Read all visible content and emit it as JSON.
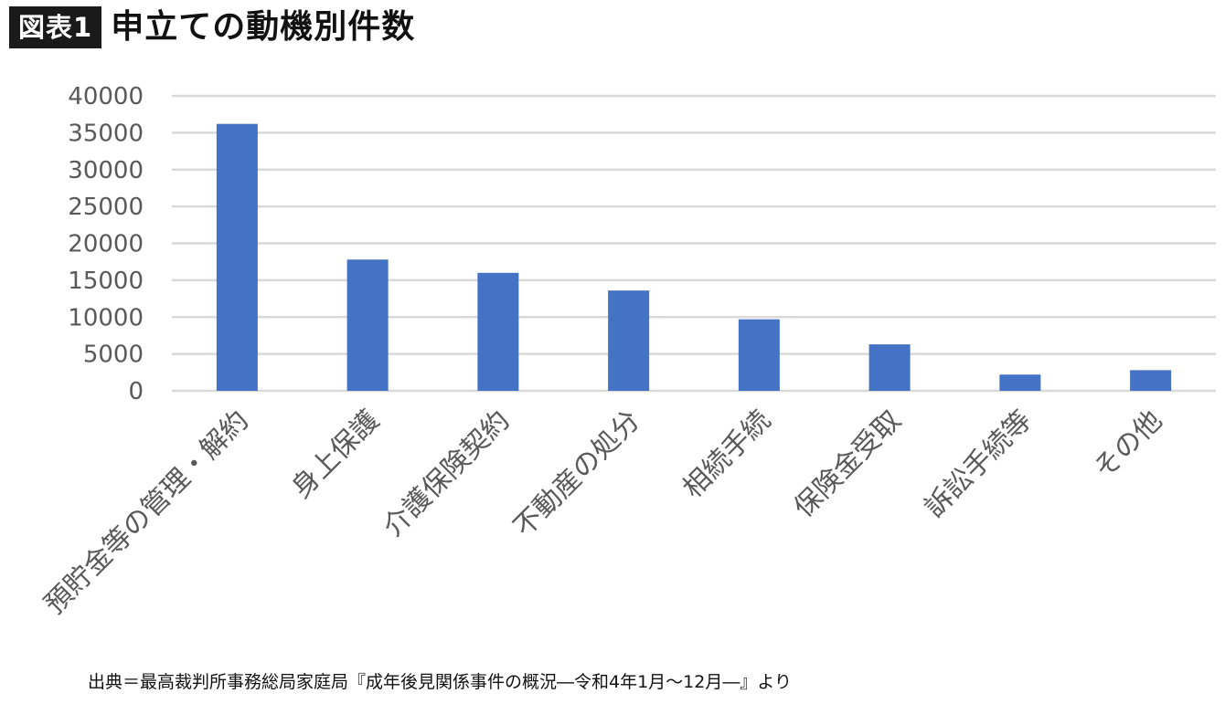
{
  "header": {
    "badge": "図表1",
    "title": "申立ての動機別件数"
  },
  "chart_data": {
    "type": "bar",
    "categories": [
      "預貯金等の管理・解約",
      "身上保護",
      "介護保険契約",
      "不動産の処分",
      "相続手続",
      "保険金受取",
      "訴訟手続等",
      "その他"
    ],
    "values": [
      36200,
      17800,
      16000,
      13600,
      9700,
      6300,
      2200,
      2800
    ],
    "ylim": [
      0,
      40000
    ],
    "yticks": [
      0,
      5000,
      10000,
      15000,
      20000,
      25000,
      30000,
      35000,
      40000
    ],
    "grid": true,
    "legend": "none",
    "bar_color": "#4472c4",
    "grid_color": "#d9d9d9",
    "tick_label_color": "#595959"
  },
  "footer": {
    "source": "出典＝最高裁判所事務総局家庭局『成年後見関係事件の概況―令和4年1月～12月―』より"
  }
}
